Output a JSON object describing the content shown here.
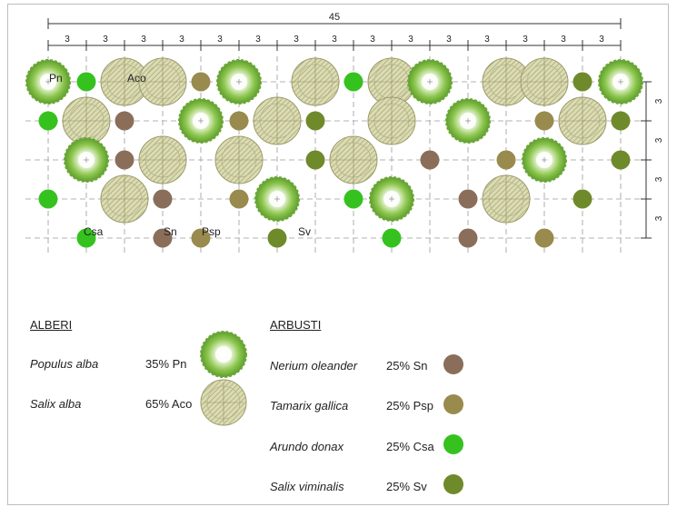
{
  "plan": {
    "overall_dim": "45",
    "module_dim": "3",
    "row_dims": [
      "3",
      "3",
      "3",
      "3"
    ],
    "labels": [
      {
        "text": "Pn",
        "code": "Pn"
      },
      {
        "text": "Aco",
        "code": "Aco"
      },
      {
        "text": "Csa",
        "code": "Csa"
      },
      {
        "text": "Sn",
        "code": "Sn"
      },
      {
        "text": "Psp",
        "code": "Psp"
      },
      {
        "text": "Sv",
        "code": "Sv"
      }
    ]
  },
  "legend": {
    "trees_title": "ALBERI",
    "shrubs_title": "ARBUSTI",
    "trees": [
      {
        "species": "Populus alba",
        "pct": "35% Pn",
        "icon": "populus-tree-icon"
      },
      {
        "species": "Salix alba",
        "pct": "65% Aco",
        "icon": "salix-tree-icon"
      }
    ],
    "shrubs": [
      {
        "species": "Nerium oleander",
        "pct": "25% Sn",
        "color": "#8a6e5a"
      },
      {
        "species": "Tamarix gallica",
        "pct": "25% Psp",
        "color": "#998a4e"
      },
      {
        "species": "Arundo donax",
        "pct": "25% Csa",
        "color": "#35c21f"
      },
      {
        "species": "Salix viminalis",
        "pct": "25% Sv",
        "color": "#6f8a2a"
      }
    ]
  },
  "colors": {
    "Sn": "#8a6e5a",
    "Psp": "#998a4e",
    "Csa": "#35c21f",
    "Sv": "#6f8a2a",
    "populus_green": "#7bbd3e",
    "salix_fill": "#dcdcb4",
    "salix_hatch": "#a9a878"
  }
}
